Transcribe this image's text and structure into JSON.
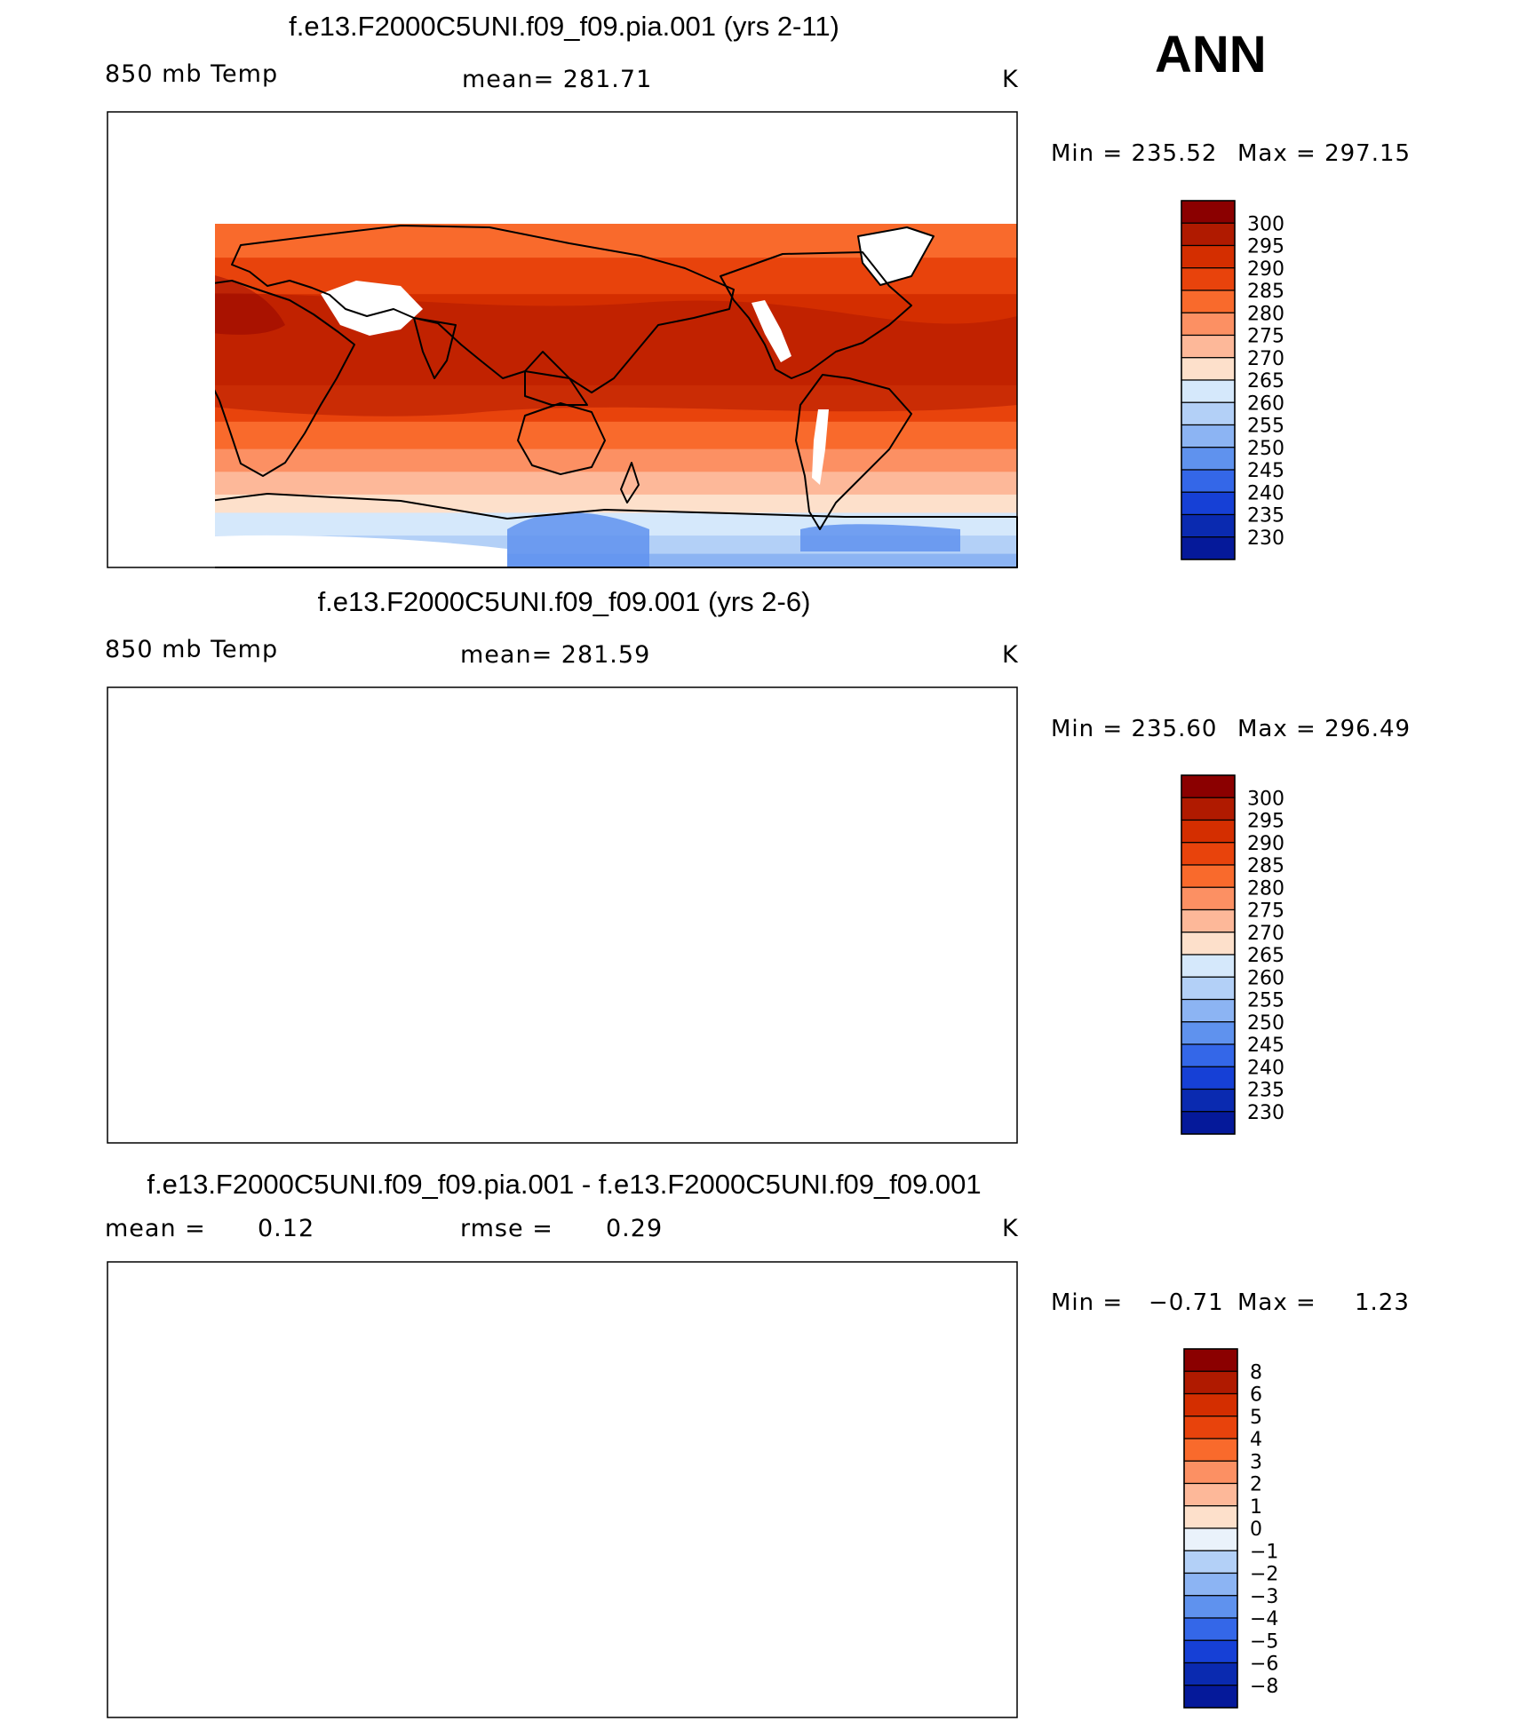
{
  "season_label": "ANN",
  "chart_data": [
    {
      "type": "heatmap",
      "title": "f.e13.F2000C5UNI.f09_f09.pia.001 (yrs 2-11)",
      "variable": "850 mb Temp",
      "stat_label": "mean=  281.71",
      "units": "K",
      "min_label": "Min  =  235.52",
      "max_label": "Max  =  297.15",
      "min": 235.52,
      "max": 297.15,
      "mean": 281.71,
      "colorbar_levels": [
        "300",
        "295",
        "290",
        "285",
        "280",
        "275",
        "270",
        "265",
        "260",
        "255",
        "250",
        "245",
        "240",
        "235",
        "230"
      ],
      "colorbar_colors": [
        "#8b0000",
        "#b01a00",
        "#d42e00",
        "#e8430c",
        "#f96a2c",
        "#fc9063",
        "#fdb899",
        "#fde0cb",
        "#d5e8fb",
        "#b3d0f7",
        "#8cb4f3",
        "#5f92ee",
        "#3467e8",
        "#1640d6",
        "#0a2ab0",
        "#05199a"
      ]
    },
    {
      "type": "heatmap",
      "title": "f.e13.F2000C5UNI.f09_f09.001 (yrs 2-6)",
      "variable": "850 mb Temp",
      "stat_label": "mean=  281.59",
      "units": "K",
      "min_label": "Min  =  235.60",
      "max_label": "Max  =  296.49",
      "min": 235.6,
      "max": 296.49,
      "mean": 281.59,
      "colorbar_levels": [
        "300",
        "295",
        "290",
        "285",
        "280",
        "275",
        "270",
        "265",
        "260",
        "255",
        "250",
        "245",
        "240",
        "235",
        "230"
      ],
      "colorbar_colors": [
        "#8b0000",
        "#b01a00",
        "#d42e00",
        "#e8430c",
        "#f96a2c",
        "#fc9063",
        "#fdb899",
        "#fde0cb",
        "#d5e8fb",
        "#b3d0f7",
        "#8cb4f3",
        "#5f92ee",
        "#3467e8",
        "#1640d6",
        "#0a2ab0",
        "#05199a"
      ]
    },
    {
      "type": "heatmap",
      "title": "f.e13.F2000C5UNI.f09_f09.pia.001 - f.e13.F2000C5UNI.f09_f09.001",
      "mean_label": "mean =",
      "mean_value": "0.12",
      "rmse_label": "rmse =",
      "rmse_value": "0.29",
      "units": "K",
      "min_label": "Min  =",
      "min_value": "−0.71",
      "max_label": "Max  =",
      "max_value": "1.23",
      "min": -0.71,
      "max": 1.23,
      "mean": 0.12,
      "rmse": 0.29,
      "colorbar_levels": [
        "8",
        "6",
        "5",
        "4",
        "3",
        "2",
        "1",
        "0",
        "−1",
        "−2",
        "−3",
        "−4",
        "−5",
        "−6",
        "−8"
      ],
      "colorbar_colors": [
        "#8b0000",
        "#b01a00",
        "#d42e00",
        "#e8430c",
        "#f96a2c",
        "#fc9063",
        "#fdb899",
        "#fde0cb",
        "#eaf2fb",
        "#b3d0f7",
        "#8cb4f3",
        "#5f92ee",
        "#3467e8",
        "#1640d6",
        "#0a2ab0",
        "#05199a"
      ]
    }
  ]
}
